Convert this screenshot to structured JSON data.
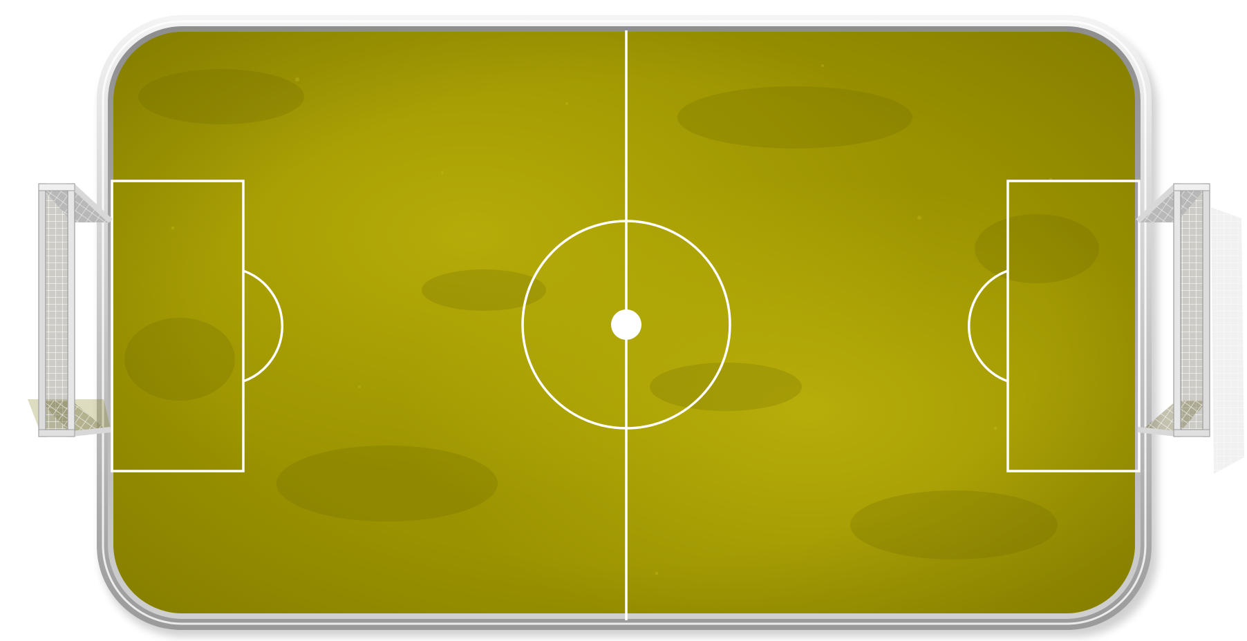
{
  "scene": {
    "type": "soccer-pitch-top-down",
    "colors": {
      "turf_base": "#9a9200",
      "turf_light": "#b4ab0a",
      "turf_dark": "#7a7400",
      "lines": "#ffffff",
      "rail_light": "#f2f2f2",
      "rail_mid": "#bdbdbd",
      "rail_dark": "#8e8e8e",
      "net": "#ffffff",
      "goal_frame": "#d9d9d9"
    },
    "goals": [
      {
        "side": "left",
        "icon": "goal-net-icon"
      },
      {
        "side": "right",
        "icon": "goal-net-icon"
      }
    ],
    "markings": [
      "halfway-line",
      "center-circle",
      "center-spot",
      "penalty-area-left",
      "penalty-area-right",
      "penalty-arc-left",
      "penalty-arc-right"
    ]
  }
}
